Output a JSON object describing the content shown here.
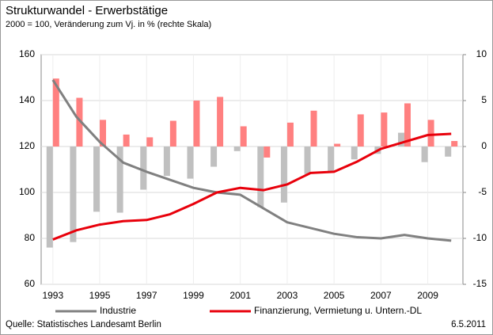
{
  "chart_data": {
    "type": "line_bar",
    "title": "Strukturwandel - Erwerbstätige",
    "subtitle": "2000 = 100, Veränderung zum Vj. in % (rechte Skala)",
    "source": "Quelle: Statistisches Landesamt Berlin",
    "date": "6.5.2011",
    "categories": [
      "1993",
      null,
      "1995",
      null,
      "1997",
      null,
      "1999",
      null,
      "2001",
      null,
      "2003",
      null,
      "2005",
      null,
      "2007",
      null,
      "2009",
      null
    ],
    "series": [
      {
        "name": "Industrie",
        "color": "#808080",
        "bar_color": "#c0c0c0",
        "values": [
          149,
          133,
          122,
          113,
          109,
          105.5,
          102,
          100,
          99,
          93,
          87,
          84.5,
          82,
          80.5,
          80,
          81.5,
          80,
          79
        ],
        "bar_values": [
          -11,
          -10.4,
          -7.1,
          -7.2,
          -4.7,
          -3.2,
          -3.5,
          -2.2,
          -0.5,
          -6.6,
          -6.1,
          -3,
          -2.7,
          -1.4,
          -0.8,
          1.5,
          -1.7,
          -1.1
        ]
      },
      {
        "name": "Finanzierung, Vermietung u. Untern.-DL",
        "color": "#e8000b",
        "bar_color": "#ff8080",
        "values": [
          79.5,
          83.5,
          86,
          87.5,
          88,
          90.5,
          95,
          100,
          102,
          101,
          103.5,
          108.5,
          109,
          113.5,
          119,
          122,
          125,
          125.5
        ],
        "bar_values": [
          7.4,
          5.3,
          2.9,
          1.3,
          1.0,
          2.8,
          5.0,
          5.4,
          2.2,
          -1.2,
          2.6,
          3.9,
          0.3,
          3.5,
          3.7,
          4.7,
          2.9,
          0.6
        ]
      }
    ],
    "ylim": [
      60,
      160
    ],
    "yticks": [
      60,
      80,
      100,
      120,
      140,
      160
    ],
    "y2lim": [
      -15,
      10
    ],
    "y2ticks": [
      -15,
      -10,
      -5,
      0,
      5,
      10
    ],
    "grid": true
  }
}
